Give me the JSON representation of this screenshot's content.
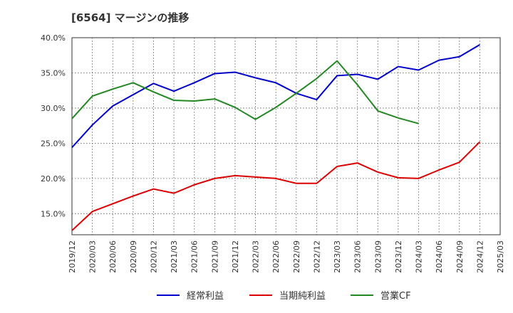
{
  "chart_data": {
    "type": "line",
    "title": "[6564]  マージンの推移",
    "xlabel": "",
    "ylabel": "",
    "ylim": [
      12.0,
      40.0
    ],
    "yticks": [
      "40.0%",
      "35.0%",
      "30.0%",
      "25.0%",
      "20.0%",
      "15.0%"
    ],
    "ytick_values": [
      40,
      35,
      30,
      25,
      20,
      15
    ],
    "categories": [
      "2019/12",
      "2020/03",
      "2020/06",
      "2020/09",
      "2020/12",
      "2021/03",
      "2021/06",
      "2021/09",
      "2021/12",
      "2022/03",
      "2022/06",
      "2022/09",
      "2022/12",
      "2023/03",
      "2023/06",
      "2023/09",
      "2023/12",
      "2024/03",
      "2024/06",
      "2024/09",
      "2024/12",
      "2025/03"
    ],
    "grid": true,
    "legend_position": "bottom",
    "series": [
      {
        "name": "経常利益",
        "color": "#0000cc",
        "values": [
          24.4,
          27.6,
          30.3,
          31.9,
          33.5,
          32.4,
          33.6,
          34.9,
          35.1,
          34.3,
          33.6,
          32.1,
          31.2,
          34.6,
          34.8,
          34.1,
          35.9,
          35.4,
          36.8,
          37.3,
          39.0,
          null
        ]
      },
      {
        "name": "当期純利益",
        "color": "#dd0000",
        "values": [
          12.6,
          15.3,
          16.4,
          17.5,
          18.5,
          17.9,
          19.1,
          20.0,
          20.4,
          20.2,
          20.0,
          19.3,
          19.3,
          21.7,
          22.2,
          20.9,
          20.1,
          20.0,
          21.2,
          22.3,
          25.2,
          null
        ]
      },
      {
        "name": "営業CF",
        "color": "#228822",
        "values": [
          28.5,
          31.7,
          32.7,
          33.6,
          32.3,
          31.1,
          31.0,
          31.3,
          30.1,
          28.4,
          30.1,
          32.1,
          34.2,
          36.7,
          33.3,
          29.6,
          28.6,
          27.8,
          null,
          null,
          null,
          null
        ]
      }
    ]
  }
}
